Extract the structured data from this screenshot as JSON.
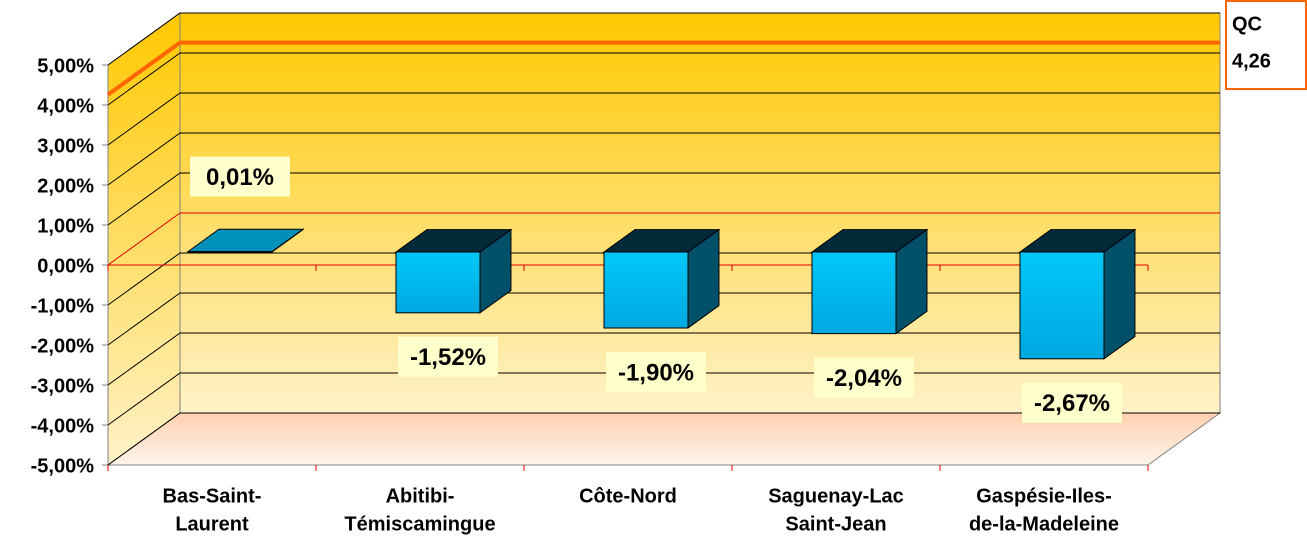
{
  "chart_data": {
    "type": "bar3d",
    "categories": [
      [
        "Bas-Saint-",
        "Laurent"
      ],
      [
        "Abitibi-",
        "Témiscamingue"
      ],
      [
        "Côte-Nord"
      ],
      [
        "Saguenay-Lac",
        "Saint-Jean"
      ],
      [
        "Gaspésie-Iles-",
        "de-la-Madeleine"
      ]
    ],
    "values": [
      0.01,
      -1.52,
      -1.9,
      -2.04,
      -2.67
    ],
    "value_labels": [
      "0,01%",
      "-1,52%",
      "-1,90%",
      "-2,04%",
      "-2,67%"
    ],
    "color": "#00c0f0",
    "ylim": [
      -5,
      5
    ],
    "yticks": [
      {
        "value": -5,
        "label": "-5,00%"
      },
      {
        "value": -4,
        "label": "-4,00%"
      },
      {
        "value": -3,
        "label": "-3,00%"
      },
      {
        "value": -2,
        "label": "-2,00%"
      },
      {
        "value": -1,
        "label": "-1,00%"
      },
      {
        "value": 0,
        "label": "0,00%"
      },
      {
        "value": 1,
        "label": "1,00%"
      },
      {
        "value": 2,
        "label": "2,00%"
      },
      {
        "value": 3,
        "label": "3,00%"
      },
      {
        "value": 4,
        "label": "4,00%"
      },
      {
        "value": 5,
        "label": "5,00%"
      }
    ],
    "grid": true,
    "reference_line": {
      "name": "QC",
      "value": 4.26,
      "value_label": "4,26",
      "color": "#ff6600"
    }
  }
}
